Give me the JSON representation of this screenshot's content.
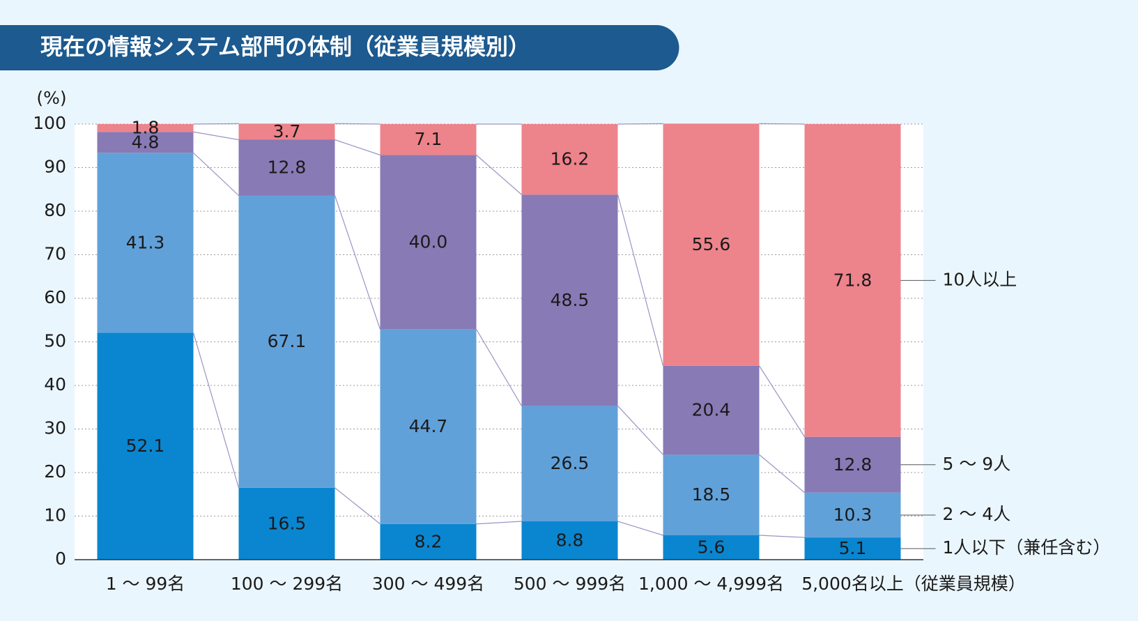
{
  "chart_data": {
    "type": "stacked_bar",
    "title": "現在の情報システム部門の体制（従業員規模別）",
    "ylabel": "(%)",
    "xlabel": "（従業員規模）",
    "categories": [
      "1 〜 99名",
      "100 〜 299名",
      "300 〜 499名",
      "500 〜 999名",
      "1,000 〜 4,999名",
      "5,000名以上"
    ],
    "series": [
      {
        "name": "1人以下（兼任含む）",
        "color": "#0a86d0",
        "values": [
          52.1,
          16.5,
          8.2,
          8.8,
          5.6,
          5.1
        ]
      },
      {
        "name": "2 〜 4人",
        "color": "#61a1d9",
        "values": [
          41.3,
          67.1,
          44.7,
          26.5,
          18.5,
          10.3
        ]
      },
      {
        "name": "5 〜 9人",
        "color": "#877ab5",
        "values": [
          4.8,
          12.8,
          40.0,
          48.5,
          20.4,
          12.8
        ],
        "value_labels": [
          "4.8",
          "12.8",
          "40.0",
          "48.5",
          "20.4",
          "12.8"
        ]
      },
      {
        "name": "10人以上",
        "color": "#ed838b",
        "values": [
          1.8,
          3.7,
          7.1,
          16.2,
          55.6,
          71.8
        ]
      }
    ],
    "ylim": [
      0,
      100
    ],
    "yticks": [
      0,
      10,
      20,
      30,
      40,
      50,
      60,
      70,
      80,
      90,
      100
    ],
    "grid": true
  }
}
